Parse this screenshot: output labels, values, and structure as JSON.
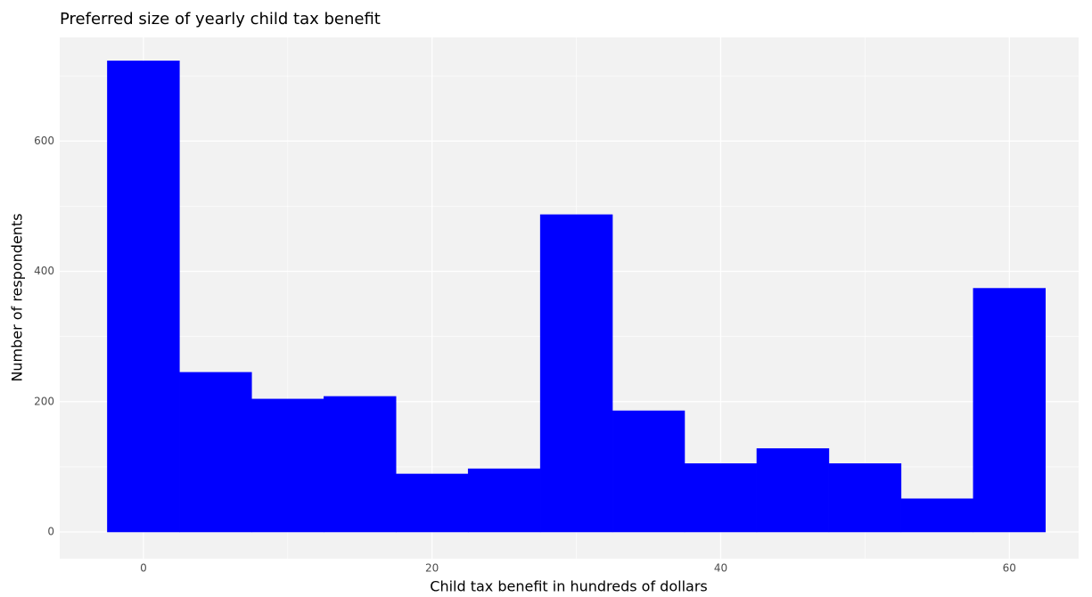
{
  "chart_data": {
    "type": "histogram",
    "title": "Preferred size of yearly child tax benefit",
    "x_label": "Child tax benefit in hundreds of dollars",
    "y_label": "Number of respondents",
    "bins": [
      -2.5,
      2.5,
      7.5,
      12.5,
      17.5,
      22.5,
      27.5,
      32.5,
      37.5,
      42.5,
      47.5,
      52.5,
      57.5,
      62.5
    ],
    "values": [
      723,
      245,
      204,
      208,
      89,
      97,
      487,
      186,
      105,
      128,
      105,
      51,
      374
    ],
    "color": "#0000ff",
    "xlim": [
      -5.8,
      64.8
    ],
    "ylim": [
      -41,
      759
    ],
    "xticks": [
      0,
      20,
      40,
      60
    ],
    "yticks": [
      0,
      200,
      400,
      600
    ],
    "xminorticks": [
      10,
      30,
      50
    ],
    "yminorticks": [
      100,
      300,
      500,
      700
    ],
    "grid": true
  }
}
